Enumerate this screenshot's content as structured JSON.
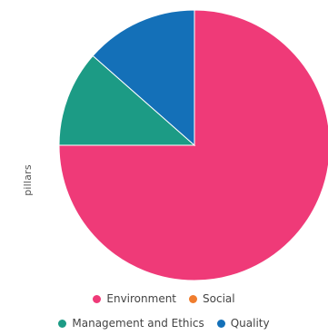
{
  "chart_data": {
    "type": "pie",
    "ylabel": "pillars",
    "categories": [
      "Environment",
      "Social",
      "Management and Ethics",
      "Quality"
    ],
    "values": [
      75,
      0,
      11.5,
      13.5
    ],
    "colors": [
      "#ef3a78",
      "#f07d2e",
      "#1c9b85",
      "#1470b8"
    ],
    "start_angle_deg": 0,
    "legend_position": "bottom"
  }
}
